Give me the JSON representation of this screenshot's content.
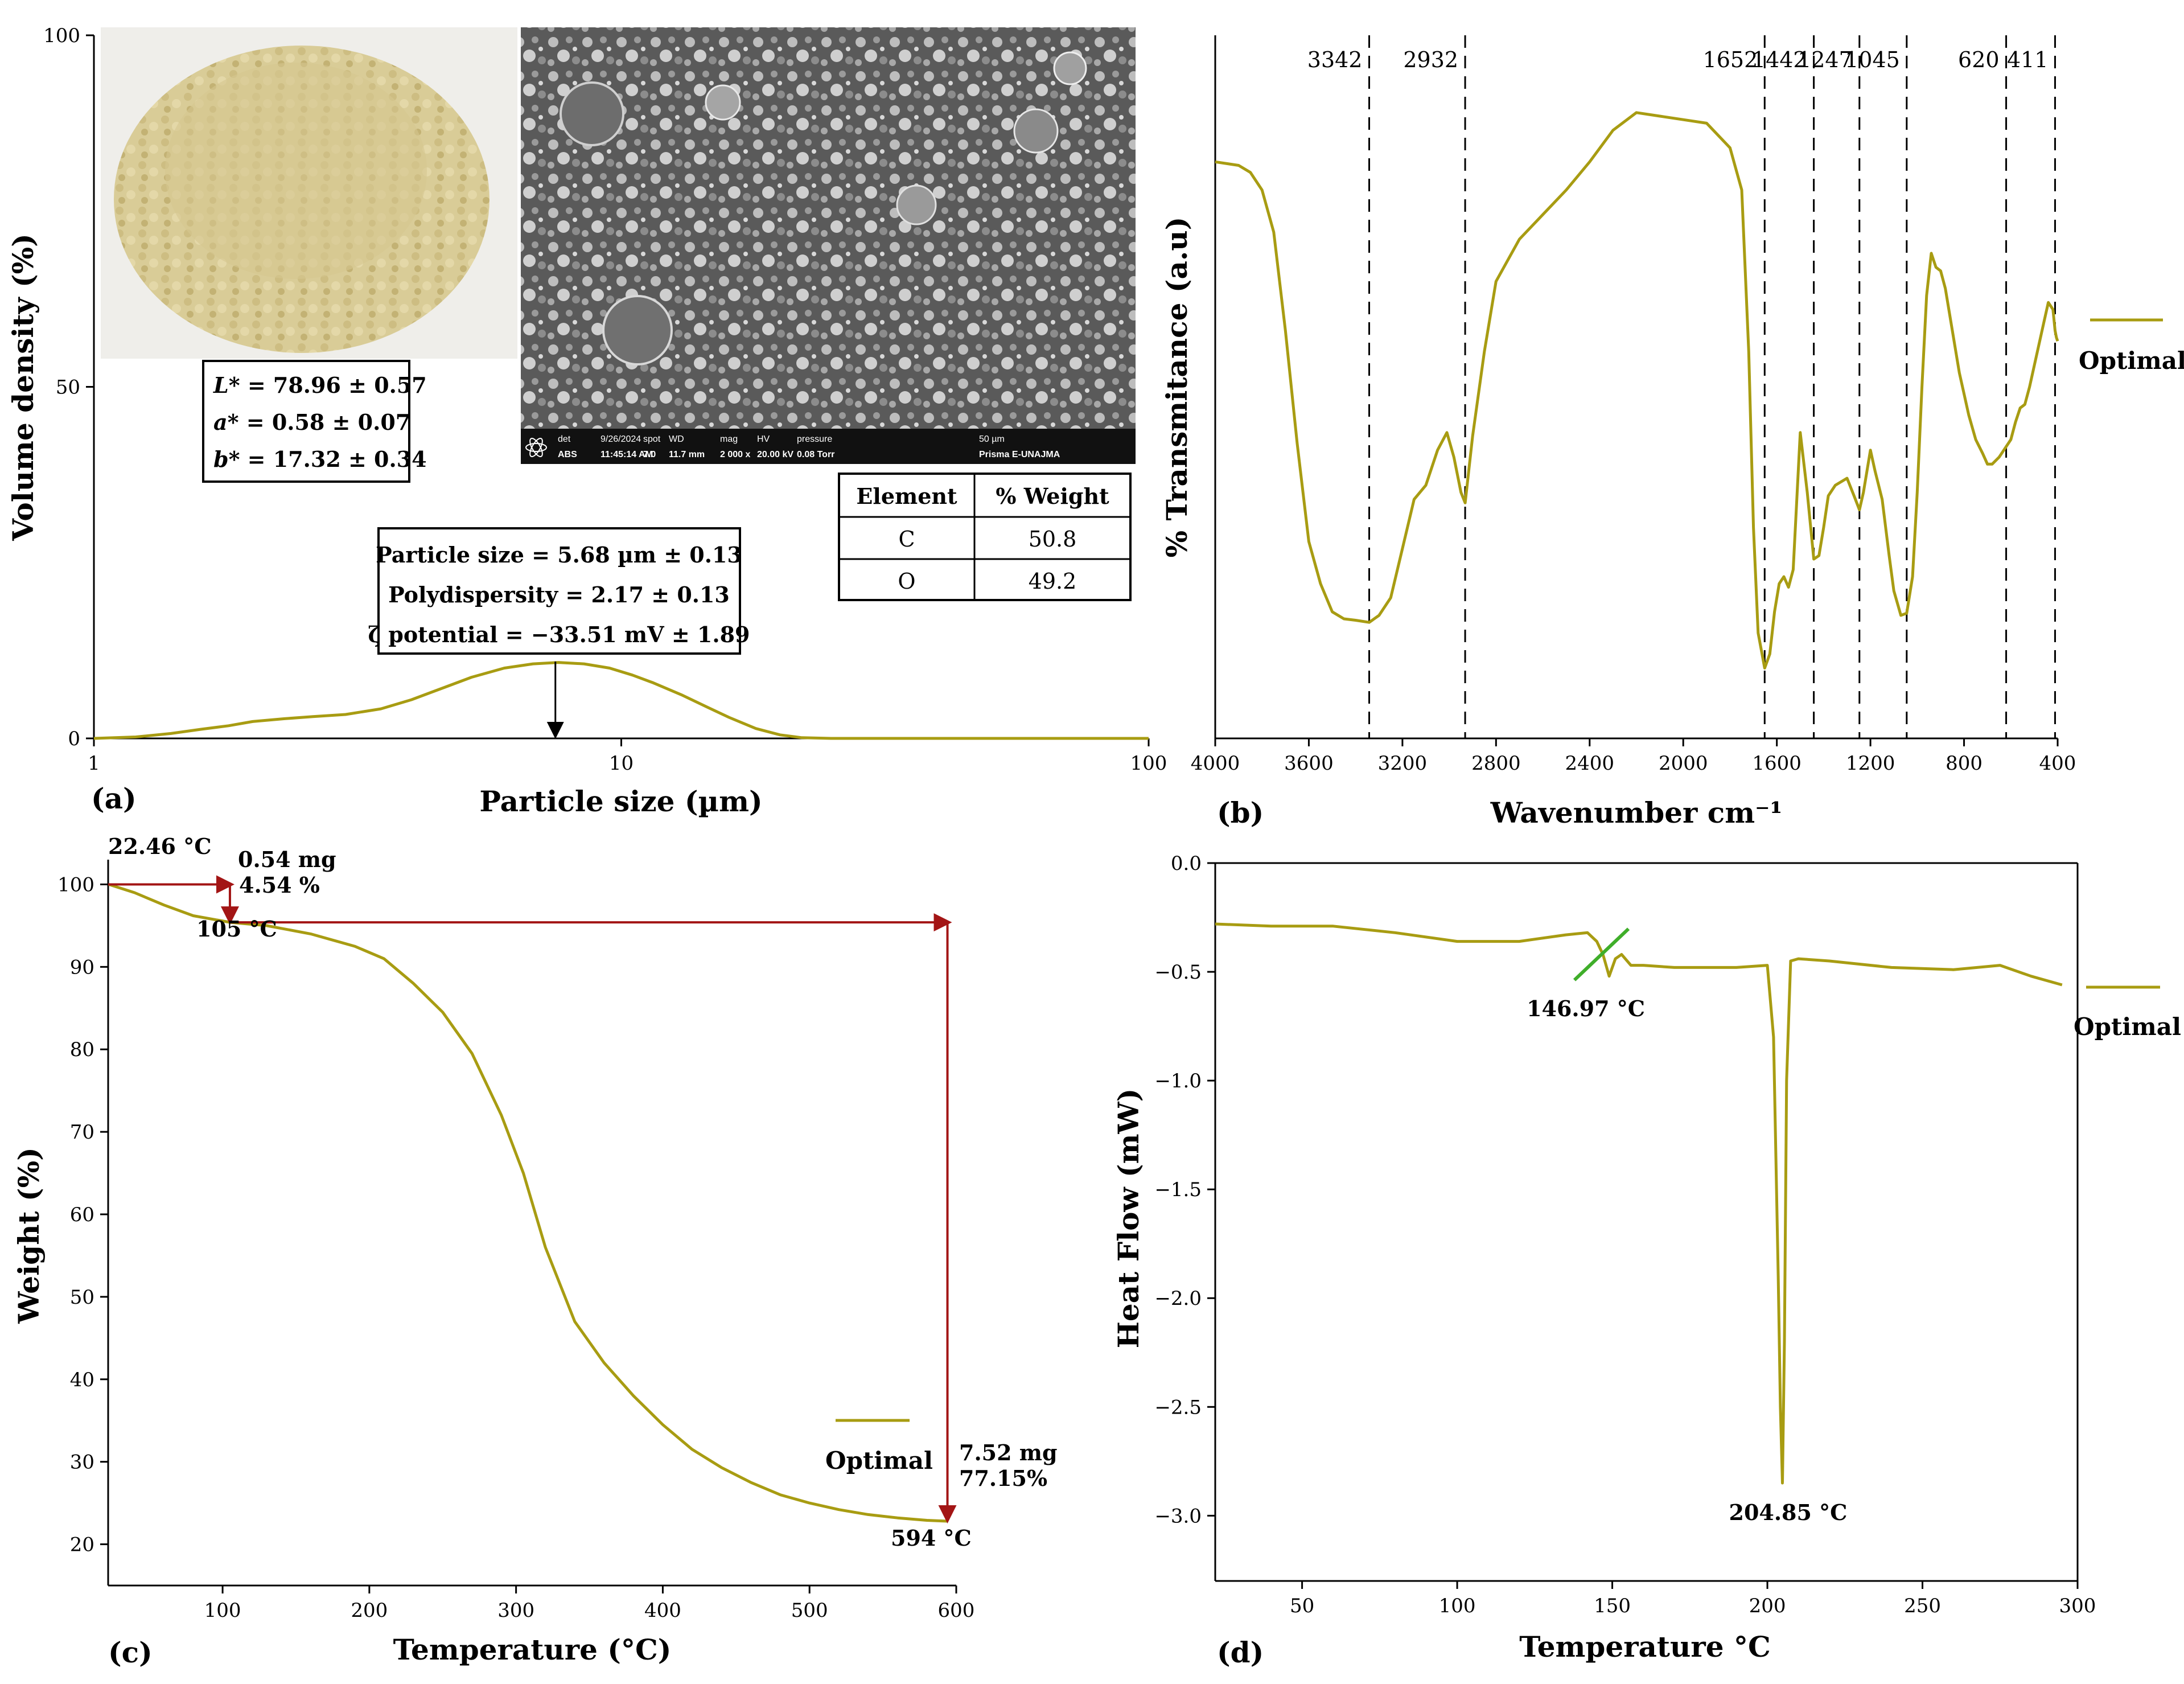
{
  "colors": {
    "curve": "#A89C12",
    "arrow": "#A31515",
    "tangent": "#3FAE2A",
    "axis": "#000000"
  },
  "icons": {
    "detector": "atom-icon"
  },
  "chart_data": [
    {
      "id": "a",
      "type": "line",
      "panel_label": "(a)",
      "xlabel": "Particle size (µm)",
      "ylabel": "Volume density (%)",
      "xscale": "log",
      "xlim": [
        1,
        100
      ],
      "ylim": [
        0,
        100
      ],
      "xticks": [
        {
          "v": 1,
          "t": "1"
        },
        {
          "v": 10,
          "t": "10"
        },
        {
          "v": 100,
          "t": "100"
        }
      ],
      "yticks": [
        {
          "v": 0,
          "t": "0"
        },
        {
          "v": 50,
          "t": "50"
        },
        {
          "v": 100,
          "t": "100"
        }
      ],
      "series": [
        {
          "x": [
            1.0,
            1.2,
            1.4,
            1.6,
            1.8,
            2.0,
            2.3,
            2.6,
            3.0,
            3.5,
            4.0,
            4.6,
            5.2,
            6.0,
            6.8,
            7.6,
            8.5,
            9.5,
            10.5,
            11.5,
            13.0,
            14.5,
            16.0,
            18.0,
            20.0,
            22.0,
            25.0,
            30.0,
            40.0,
            60.0,
            100.0
          ],
          "y": [
            0,
            0.2,
            0.7,
            1.3,
            1.8,
            2.4,
            2.8,
            3.1,
            3.4,
            4.2,
            5.5,
            7.2,
            8.7,
            10.0,
            10.6,
            10.8,
            10.6,
            10.0,
            9.0,
            7.9,
            6.2,
            4.5,
            3.0,
            1.4,
            0.5,
            0.1,
            0,
            0,
            0,
            0,
            0
          ]
        }
      ],
      "peak_arrow_x": 7.5,
      "annotations": {
        "box_lines": [
          "Particle size  = 5.68 µm ± 0.13",
          "Polydispersity = 2.17 ± 0.13",
          "ζ potential = −33.51 mV ± 1.89"
        ],
        "color_values": {
          "L": "78.96 ± 0.57",
          "a": "0.58 ± 0.07",
          "b": "17.32 ± 0.34"
        },
        "color_labels": {
          "L": "L*",
          "a": "a*",
          "b": "b*"
        },
        "eds_table": {
          "headers": [
            "Element",
            "% Weight"
          ],
          "rows": [
            [
              "C",
              "50.8"
            ],
            [
              "O",
              "49.2"
            ]
          ]
        },
        "sem_bar": {
          "labels_top": [
            "det",
            "9/26/2024",
            "spot",
            "WD",
            "mag",
            "HV",
            "pressure",
            "50 µm"
          ],
          "labels_bottom": [
            "ABS",
            "11:45:14 AM",
            "7.0",
            "11.7 mm",
            "2 000 x",
            "20.00 kV",
            "0.08 Torr",
            "Prisma E-UNAJMA"
          ]
        }
      }
    },
    {
      "id": "b",
      "type": "line",
      "panel_label": "(b)",
      "xlabel": "Wavenumber cm⁻¹",
      "ylabel": "% Transmitance (a.u)",
      "xlim": [
        4000,
        400
      ],
      "ylim": [
        0,
        100
      ],
      "xticks": [
        {
          "v": 4000,
          "t": "4000"
        },
        {
          "v": 3600,
          "t": "3600"
        },
        {
          "v": 3200,
          "t": "3200"
        },
        {
          "v": 2800,
          "t": "2800"
        },
        {
          "v": 2400,
          "t": "2400"
        },
        {
          "v": 2000,
          "t": "2000"
        },
        {
          "v": 1600,
          "t": "1600"
        },
        {
          "v": 1200,
          "t": "1200"
        },
        {
          "v": 800,
          "t": "800"
        },
        {
          "v": 400,
          "t": "400"
        }
      ],
      "legend": "Optimal",
      "peaks": [
        {
          "v": 3342,
          "t": "3342"
        },
        {
          "v": 2932,
          "t": "2932"
        },
        {
          "v": 1652,
          "t": "1652"
        },
        {
          "v": 1442,
          "t": "1442"
        },
        {
          "v": 1247,
          "t": "1247"
        },
        {
          "v": 1045,
          "t": "1045"
        },
        {
          "v": 620,
          "t": "620"
        },
        {
          "v": 411,
          "t": "411"
        }
      ],
      "series": [
        {
          "name": "Optimal",
          "x": [
            4000,
            3900,
            3850,
            3800,
            3750,
            3700,
            3650,
            3600,
            3550,
            3500,
            3450,
            3400,
            3342,
            3300,
            3250,
            3200,
            3150,
            3100,
            3050,
            3010,
            2980,
            2950,
            2932,
            2900,
            2850,
            2800,
            2700,
            2600,
            2500,
            2400,
            2300,
            2200,
            2100,
            2000,
            1900,
            1800,
            1750,
            1720,
            1700,
            1680,
            1652,
            1630,
            1610,
            1590,
            1570,
            1550,
            1530,
            1500,
            1470,
            1442,
            1420,
            1400,
            1380,
            1350,
            1300,
            1270,
            1247,
            1230,
            1200,
            1180,
            1150,
            1120,
            1100,
            1070,
            1045,
            1020,
            1000,
            980,
            960,
            940,
            920,
            900,
            880,
            850,
            820,
            800,
            780,
            750,
            720,
            700,
            680,
            650,
            620,
            600,
            580,
            560,
            540,
            520,
            500,
            480,
            460,
            440,
            420,
            411,
            405,
            400
          ],
          "y": [
            82.0,
            81.5,
            80.5,
            78.0,
            72.0,
            58.0,
            42.0,
            28.0,
            22.0,
            18.0,
            17.0,
            16.8,
            16.5,
            17.5,
            20.0,
            27.0,
            34.0,
            36.0,
            41.0,
            43.5,
            40.0,
            35.0,
            33.5,
            43.0,
            55.0,
            65.0,
            71.0,
            74.5,
            78.0,
            82.0,
            86.5,
            89.0,
            88.5,
            88.0,
            87.5,
            84.0,
            78.0,
            55.0,
            30.0,
            15.0,
            10.0,
            12.0,
            18.0,
            22.0,
            23.0,
            21.5,
            24.0,
            43.5,
            35.0,
            25.5,
            26.0,
            30.0,
            34.5,
            36.0,
            37.0,
            34.5,
            32.5,
            35.0,
            41.0,
            38.0,
            34.0,
            26.0,
            21.0,
            17.5,
            17.8,
            23.0,
            35.0,
            50.0,
            63.0,
            69.0,
            67.0,
            66.5,
            64.0,
            58.0,
            52.0,
            49.0,
            46.0,
            42.5,
            40.5,
            39.0,
            39.0,
            40.0,
            41.5,
            42.5,
            45.0,
            47.0,
            47.5,
            50.0,
            53.0,
            56.0,
            59.0,
            62.0,
            61.0,
            58.0,
            57.0,
            56.5
          ]
        }
      ]
    },
    {
      "id": "c",
      "type": "line",
      "panel_label": "(c)",
      "xlabel": "Temperature (°C)",
      "ylabel": "Weight (%)",
      "xlim": [
        22,
        600
      ],
      "ylim": [
        15,
        103
      ],
      "xticks": [
        {
          "v": 100,
          "t": "100"
        },
        {
          "v": 200,
          "t": "200"
        },
        {
          "v": 300,
          "t": "300"
        },
        {
          "v": 400,
          "t": "400"
        },
        {
          "v": 500,
          "t": "500"
        },
        {
          "v": 600,
          "t": "600"
        }
      ],
      "yticks": [
        {
          "v": 20,
          "t": "20"
        },
        {
          "v": 30,
          "t": "30"
        },
        {
          "v": 40,
          "t": "40"
        },
        {
          "v": 50,
          "t": "50"
        },
        {
          "v": 60,
          "t": "60"
        },
        {
          "v": 70,
          "t": "70"
        },
        {
          "v": 80,
          "t": "80"
        },
        {
          "v": 90,
          "t": "90"
        },
        {
          "v": 100,
          "t": "100"
        }
      ],
      "legend": "Optimal",
      "series": [
        {
          "name": "Optimal",
          "x": [
            22.46,
            40,
            60,
            80,
            105,
            130,
            160,
            190,
            210,
            230,
            250,
            270,
            290,
            305,
            320,
            340,
            360,
            380,
            400,
            420,
            440,
            460,
            480,
            500,
            520,
            540,
            560,
            580,
            594
          ],
          "y": [
            100,
            99.0,
            97.5,
            96.2,
            95.4,
            95.0,
            94.0,
            92.5,
            91.0,
            88.0,
            84.5,
            79.5,
            72.0,
            65.0,
            56.0,
            47.0,
            42.0,
            38.0,
            34.5,
            31.5,
            29.3,
            27.5,
            26.0,
            25.0,
            24.2,
            23.6,
            23.2,
            22.9,
            22.8
          ]
        }
      ],
      "annotations": {
        "start_temp": "22.46 °C",
        "step1_mass": "0.54 mg",
        "step1_pct": "4.54 %",
        "step1_temp": "105 °C",
        "step2_mass": "7.52 mg",
        "step2_pct": "77.15%",
        "end_temp": "594 °C",
        "step1_x": 105,
        "step1_y": 95.4,
        "end_x": 594,
        "end_y": 22.8
      }
    },
    {
      "id": "d",
      "type": "line",
      "panel_label": "(d)",
      "xlabel": "Temperature °C",
      "ylabel": "Heat Flow (mW)",
      "xlim": [
        22,
        300
      ],
      "ylim": [
        -3.3,
        0
      ],
      "xticks": [
        {
          "v": 50,
          "t": "50"
        },
        {
          "v": 100,
          "t": "100"
        },
        {
          "v": 150,
          "t": "150"
        },
        {
          "v": 200,
          "t": "200"
        },
        {
          "v": 250,
          "t": "250"
        },
        {
          "v": 300,
          "t": "300"
        }
      ],
      "yticks": [
        {
          "v": 0,
          "t": "0.0"
        },
        {
          "v": -0.5,
          "t": "−0.5"
        },
        {
          "v": -1.0,
          "t": "−1.0"
        },
        {
          "v": -1.5,
          "t": "−1.5"
        },
        {
          "v": -2.0,
          "t": "−2.0"
        },
        {
          "v": -2.5,
          "t": "−2.5"
        },
        {
          "v": -3.0,
          "t": "−3.0"
        }
      ],
      "legend": "Optimal",
      "series": [
        {
          "name": "Optimal",
          "x": [
            22,
            40,
            60,
            80,
            100,
            120,
            135,
            142,
            145,
            147,
            149,
            151,
            153,
            156,
            160,
            170,
            180,
            190,
            200,
            202,
            203.5,
            204.2,
            204.85,
            205.5,
            206.2,
            207.5,
            210,
            220,
            240,
            260,
            275,
            285,
            295
          ],
          "y": [
            -0.28,
            -0.29,
            -0.29,
            -0.32,
            -0.36,
            -0.36,
            -0.33,
            -0.32,
            -0.36,
            -0.42,
            -0.52,
            -0.44,
            -0.42,
            -0.47,
            -0.47,
            -0.48,
            -0.48,
            -0.48,
            -0.47,
            -0.8,
            -1.9,
            -2.5,
            -2.85,
            -2.2,
            -1.0,
            -0.45,
            -0.44,
            -0.45,
            -0.48,
            -0.49,
            -0.47,
            -0.52,
            -0.56
          ]
        }
      ],
      "annotations": {
        "glass_label": "146.97 °C",
        "glass_x": 146.97,
        "glass_y": -0.42,
        "peak_label": "204.85 °C",
        "peak_x": 204.85,
        "peak_y": -2.85
      }
    }
  ]
}
